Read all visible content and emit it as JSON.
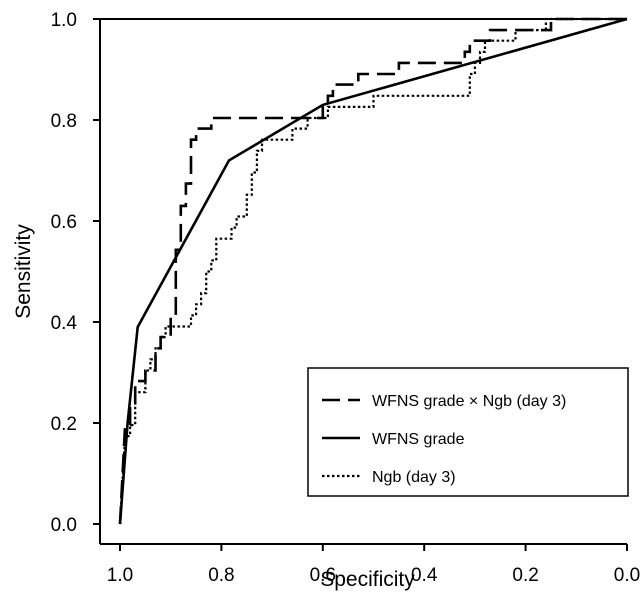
{
  "chart_data": {
    "type": "line",
    "xlabel": "Specificity",
    "ylabel": "Sensitivity",
    "xlim": [
      1.0,
      0.0
    ],
    "ylim": [
      0.0,
      1.0
    ],
    "x_reversed": true,
    "grid": false,
    "legend_position": "bottom-right",
    "xticks": [
      {
        "value": 1.0,
        "label": "1.0"
      },
      {
        "value": 0.8,
        "label": "0.8"
      },
      {
        "value": 0.6,
        "label": "0.6"
      },
      {
        "value": 0.4,
        "label": "0.4"
      },
      {
        "value": 0.2,
        "label": "0.2"
      },
      {
        "value": 0.0,
        "label": "0.0"
      }
    ],
    "yticks": [
      {
        "value": 0.0,
        "label": "0.0"
      },
      {
        "value": 0.2,
        "label": "0.2"
      },
      {
        "value": 0.4,
        "label": "0.4"
      },
      {
        "value": 0.6,
        "label": "0.6"
      },
      {
        "value": 0.8,
        "label": "0.8"
      },
      {
        "value": 1.0,
        "label": "1.0"
      }
    ],
    "series": [
      {
        "name": "WFNS grade × Ngb (day 3)",
        "style": "dashed",
        "points": [
          [
            1.0,
            0.0
          ],
          [
            0.99,
            0.196
          ],
          [
            0.98,
            0.196
          ],
          [
            0.98,
            0.239
          ],
          [
            0.97,
            0.239
          ],
          [
            0.97,
            0.283
          ],
          [
            0.95,
            0.283
          ],
          [
            0.95,
            0.304
          ],
          [
            0.93,
            0.304
          ],
          [
            0.93,
            0.348
          ],
          [
            0.92,
            0.348
          ],
          [
            0.92,
            0.37
          ],
          [
            0.9,
            0.37
          ],
          [
            0.9,
            0.413
          ],
          [
            0.89,
            0.413
          ],
          [
            0.89,
            0.543
          ],
          [
            0.88,
            0.543
          ],
          [
            0.88,
            0.63
          ],
          [
            0.87,
            0.63
          ],
          [
            0.87,
            0.674
          ],
          [
            0.86,
            0.674
          ],
          [
            0.86,
            0.761
          ],
          [
            0.85,
            0.761
          ],
          [
            0.85,
            0.783
          ],
          [
            0.82,
            0.783
          ],
          [
            0.82,
            0.804
          ],
          [
            0.6,
            0.804
          ],
          [
            0.6,
            0.826
          ],
          [
            0.59,
            0.826
          ],
          [
            0.59,
            0.848
          ],
          [
            0.58,
            0.848
          ],
          [
            0.58,
            0.87
          ],
          [
            0.53,
            0.87
          ],
          [
            0.53,
            0.891
          ],
          [
            0.45,
            0.891
          ],
          [
            0.45,
            0.913
          ],
          [
            0.32,
            0.913
          ],
          [
            0.32,
            0.935
          ],
          [
            0.31,
            0.935
          ],
          [
            0.31,
            0.957
          ],
          [
            0.27,
            0.957
          ],
          [
            0.27,
            0.978
          ],
          [
            0.15,
            0.978
          ],
          [
            0.15,
            1.0
          ],
          [
            0.0,
            1.0
          ]
        ]
      },
      {
        "name": "WFNS grade",
        "style": "solid",
        "points": [
          [
            1.0,
            0.0
          ],
          [
            0.985,
            0.2
          ],
          [
            0.965,
            0.39
          ],
          [
            0.785,
            0.72
          ],
          [
            0.6,
            0.83
          ],
          [
            0.0,
            1.0
          ]
        ]
      },
      {
        "name": "Ngb (day 3)",
        "style": "dotted",
        "points": [
          [
            1.0,
            0.0
          ],
          [
            0.99,
            0.174
          ],
          [
            0.98,
            0.174
          ],
          [
            0.98,
            0.196
          ],
          [
            0.97,
            0.196
          ],
          [
            0.97,
            0.261
          ],
          [
            0.95,
            0.261
          ],
          [
            0.95,
            0.304
          ],
          [
            0.94,
            0.304
          ],
          [
            0.94,
            0.326
          ],
          [
            0.93,
            0.326
          ],
          [
            0.93,
            0.348
          ],
          [
            0.92,
            0.348
          ],
          [
            0.92,
            0.37
          ],
          [
            0.91,
            0.37
          ],
          [
            0.91,
            0.391
          ],
          [
            0.86,
            0.391
          ],
          [
            0.86,
            0.413
          ],
          [
            0.85,
            0.413
          ],
          [
            0.85,
            0.435
          ],
          [
            0.84,
            0.435
          ],
          [
            0.84,
            0.457
          ],
          [
            0.83,
            0.457
          ],
          [
            0.83,
            0.5
          ],
          [
            0.82,
            0.5
          ],
          [
            0.82,
            0.522
          ],
          [
            0.81,
            0.522
          ],
          [
            0.81,
            0.565
          ],
          [
            0.78,
            0.565
          ],
          [
            0.78,
            0.587
          ],
          [
            0.77,
            0.587
          ],
          [
            0.77,
            0.609
          ],
          [
            0.75,
            0.609
          ],
          [
            0.75,
            0.652
          ],
          [
            0.74,
            0.652
          ],
          [
            0.74,
            0.696
          ],
          [
            0.73,
            0.696
          ],
          [
            0.73,
            0.739
          ],
          [
            0.72,
            0.739
          ],
          [
            0.72,
            0.761
          ],
          [
            0.66,
            0.761
          ],
          [
            0.66,
            0.783
          ],
          [
            0.63,
            0.783
          ],
          [
            0.63,
            0.804
          ],
          [
            0.59,
            0.804
          ],
          [
            0.59,
            0.826
          ],
          [
            0.5,
            0.826
          ],
          [
            0.5,
            0.848
          ],
          [
            0.31,
            0.848
          ],
          [
            0.31,
            0.891
          ],
          [
            0.3,
            0.891
          ],
          [
            0.3,
            0.913
          ],
          [
            0.29,
            0.913
          ],
          [
            0.29,
            0.935
          ],
          [
            0.28,
            0.935
          ],
          [
            0.28,
            0.957
          ],
          [
            0.22,
            0.957
          ],
          [
            0.22,
            0.978
          ],
          [
            0.16,
            0.978
          ],
          [
            0.16,
            1.0
          ],
          [
            0.0,
            1.0
          ]
        ]
      }
    ]
  }
}
